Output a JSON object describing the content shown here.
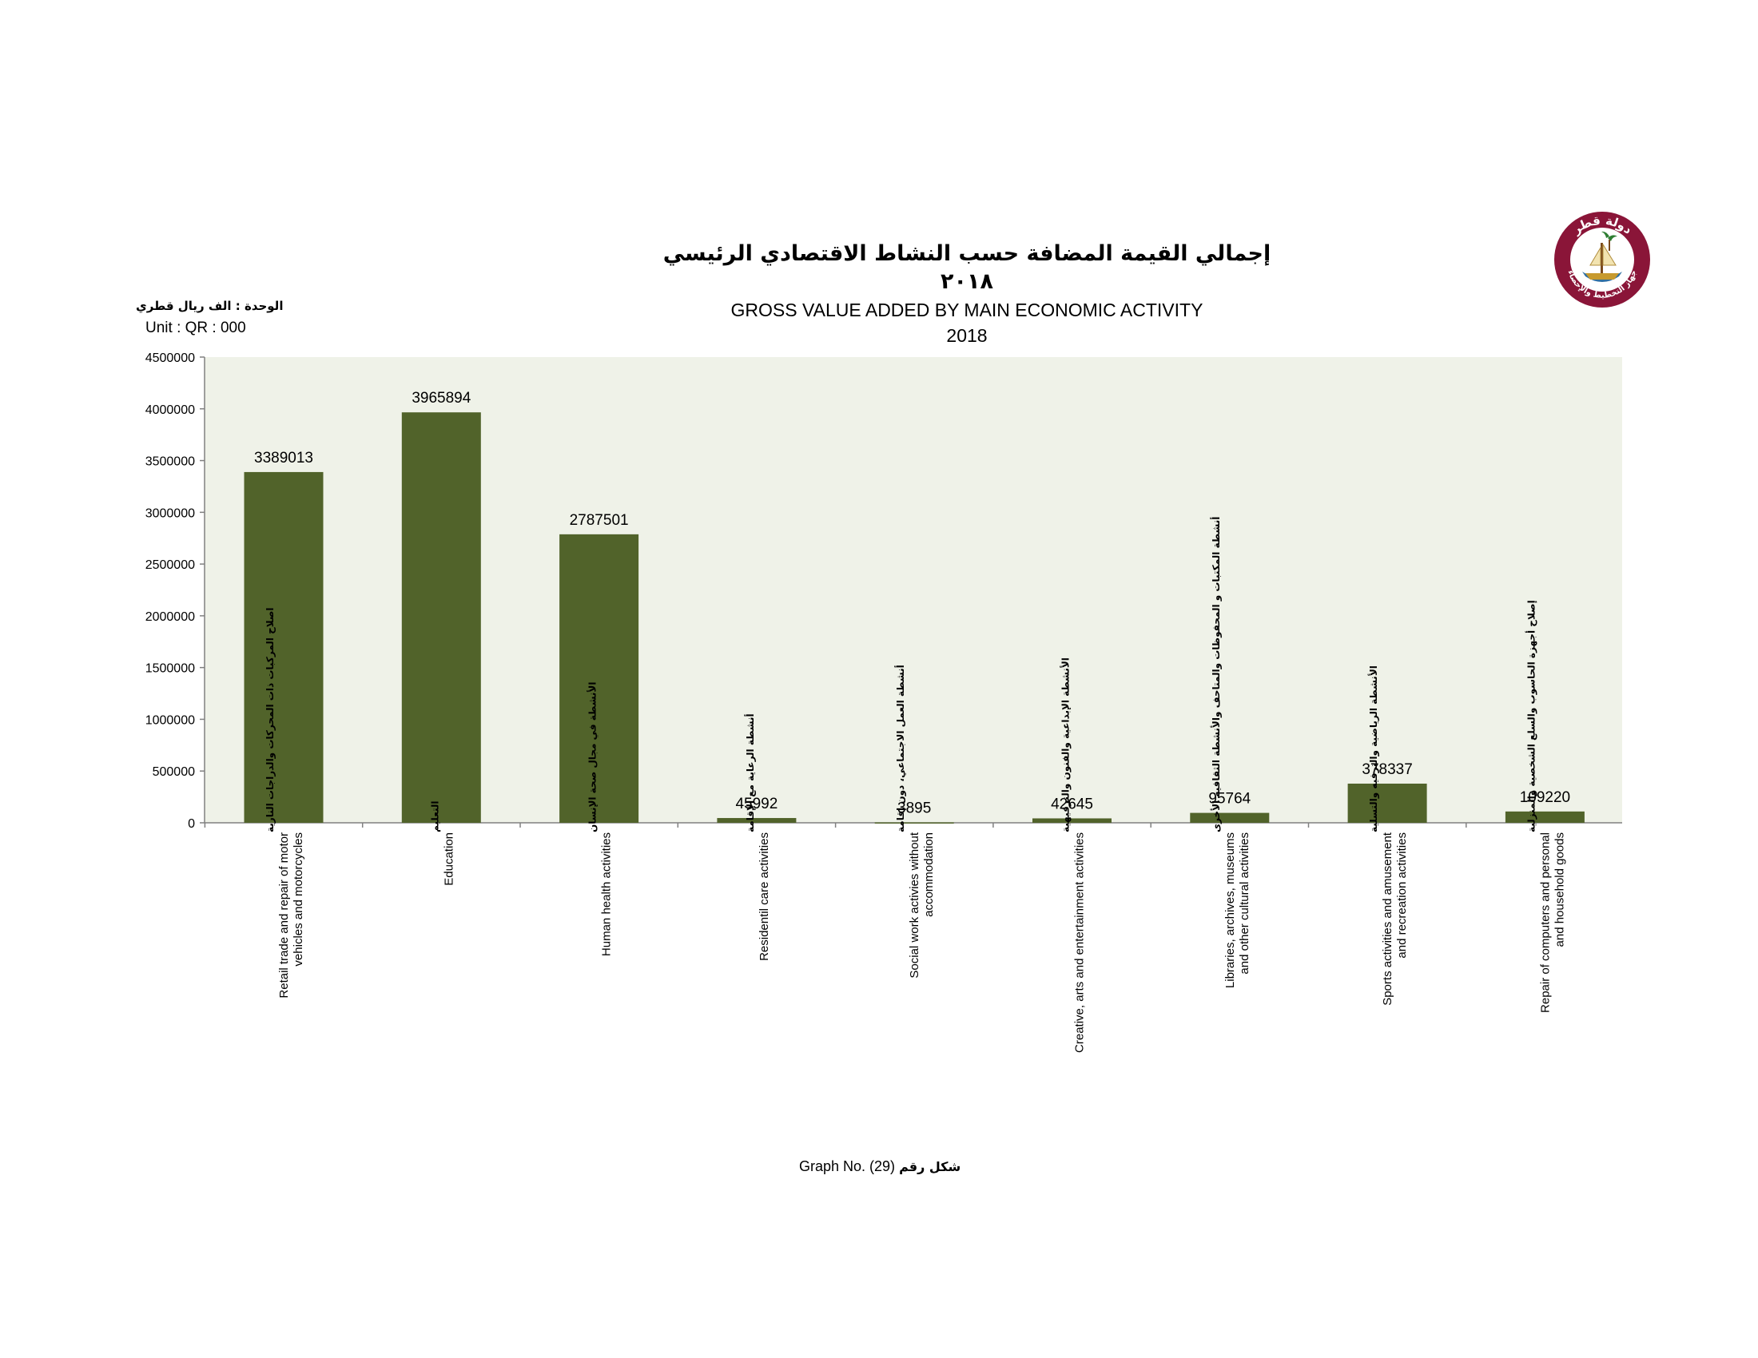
{
  "header": {
    "title_ar": "إجمالي القيمة المضافة حسب النشاط الاقتصادي الرئيسي",
    "year_ar": "٢٠١٨",
    "title_en": "GROSS VALUE ADDED BY MAIN ECONOMIC ACTIVITY",
    "year_en": "2018"
  },
  "unit": {
    "ar": "الوحدة : الف ريال قطري",
    "en": "Unit : QR : 000"
  },
  "footer": {
    "graph_no_en": "Graph No. (29)",
    "graph_no_ar": "شكل رقم"
  },
  "logo": {
    "icon": "qatar-psa-emblem-icon",
    "text_top": "دولة قطر",
    "text_bottom": "جهاز التخطيط والإحصاء"
  },
  "colors": {
    "bar": "#51632a",
    "plot_background": "#eff2e8",
    "logo_maroon": "#8a1538"
  },
  "chart_data": {
    "type": "bar",
    "title": "GROSS VALUE ADDED BY MAIN ECONOMIC ACTIVITY",
    "ylim": [
      0,
      4500000
    ],
    "yticks": [
      0,
      500000,
      1000000,
      1500000,
      2000000,
      2500000,
      3000000,
      3500000,
      4000000,
      4500000
    ],
    "grid": false,
    "categories": [
      {
        "ar": "اصلاح المركبات ذات المحركات والدراجات النارية",
        "en": [
          "Retail trade and repair of motor",
          "vehicles and motorcycles"
        ]
      },
      {
        "ar": "التعليم",
        "en": [
          "Education"
        ]
      },
      {
        "ar": "الأنشطة في مجال صحة الإنسان",
        "en": [
          "Human health activities"
        ]
      },
      {
        "ar": "أنشطة الرعاية مع الإقامة",
        "en": [
          "Residentil care activities"
        ]
      },
      {
        "ar": "أنشطة العمل الاجتماعي، دون إقامة",
        "en": [
          "Social work activies without",
          "accommodation"
        ]
      },
      {
        "ar": "الأنشطة الإبداعية والفنون والترفيهية",
        "en": [
          "Creative, arts and entertainment activities"
        ]
      },
      {
        "ar": "أنشطة المكتبات و المحفوظات والمتاحف والأنشطة الثقافية الأخرى",
        "en": [
          "Libraries, archives, museums",
          "and other cultural activities"
        ]
      },
      {
        "ar": "الأنشطة الرياضية والترفيه والتسلية",
        "en": [
          "Sports activities and amusement",
          "and recreation activities"
        ]
      },
      {
        "ar": "إصلاح أجهزة الحاسوب والسلع الشخصية والمنزلية",
        "en": [
          "Repair of computers and personal",
          "and household goods"
        ]
      }
    ],
    "values": [
      3389013,
      3965894,
      2787501,
      45992,
      3895,
      42645,
      95764,
      378337,
      109220
    ]
  }
}
